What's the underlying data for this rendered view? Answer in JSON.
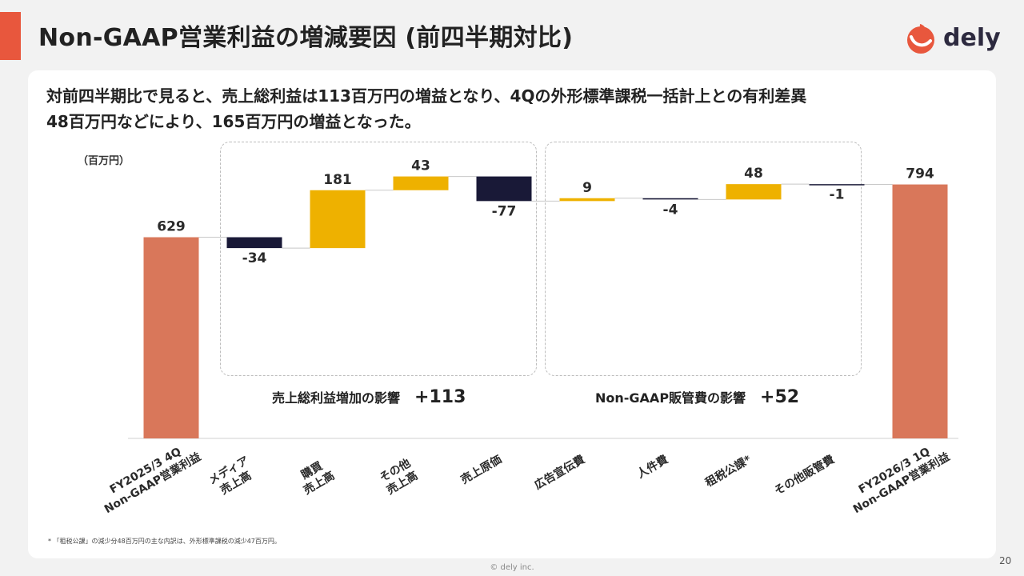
{
  "title": "Non-GAAP営業利益の増減要因 (前四半期対比)",
  "logo_text": "dely",
  "headline_1": "対前四半期比で見ると、売上総利益は113百万円の増益となり、4Qの外形標準課税一括計上との有利差異",
  "headline_2": "48百万円などにより、165百万円の増益となった。",
  "unit": "（百万円）",
  "groups": [
    {
      "label": "売上総利益増加の影響",
      "total": "+113"
    },
    {
      "label": "Non-GAAP販管費の影響",
      "total": "+52"
    }
  ],
  "footnote": "* 「租税公課」の減少分48百万円の主な内訳は、外形標準課税の減少47百万円。",
  "copyright": "© dely inc.",
  "page_number": "20",
  "colors": {
    "total": "#d9775a",
    "increase": "#eeb100",
    "decrease": "#191937",
    "accent": "#e8573d"
  },
  "chart_data": {
    "type": "waterfall",
    "unit": "（百万円）",
    "items": [
      {
        "label": [
          "FY2025/3 4Q",
          "Non-GAAP営業利益"
        ],
        "value": 629,
        "kind": "total",
        "data_label": "629"
      },
      {
        "label": [
          "メディア",
          "売上高"
        ],
        "value": -34,
        "kind": "delta",
        "data_label": "-34"
      },
      {
        "label": [
          "購買",
          "売上高"
        ],
        "value": 181,
        "kind": "delta",
        "data_label": "181"
      },
      {
        "label": [
          "その他",
          "売上高"
        ],
        "value": 43,
        "kind": "delta",
        "data_label": "43"
      },
      {
        "label": [
          "売上原価"
        ],
        "value": -77,
        "kind": "delta",
        "data_label": "-77"
      },
      {
        "label": [
          "広告宣伝費"
        ],
        "value": 9,
        "kind": "delta",
        "data_label": "9"
      },
      {
        "label": [
          "人件費"
        ],
        "value": -4,
        "kind": "delta",
        "data_label": "-4"
      },
      {
        "label": [
          "租税公課*"
        ],
        "value": 48,
        "kind": "delta",
        "data_label": "48"
      },
      {
        "label": [
          "その他販管費"
        ],
        "value": -1,
        "kind": "delta",
        "data_label": "-1"
      },
      {
        "label": [
          "FY2026/3 1Q",
          "Non-GAAP営業利益"
        ],
        "value": 794,
        "kind": "total",
        "data_label": "794"
      }
    ]
  }
}
